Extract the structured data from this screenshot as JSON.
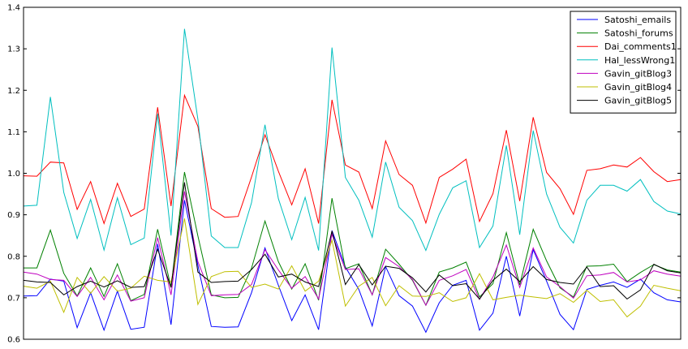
{
  "chart_data": {
    "type": "line",
    "title": "",
    "xlabel": "",
    "ylabel": "",
    "ylim": [
      0.6,
      1.4
    ],
    "xlim": [
      0,
      49
    ],
    "y_ticks": [
      "0.6",
      "0.7",
      "0.8",
      "0.9",
      "1.0",
      "1.1",
      "1.2",
      "1.3",
      "1.4"
    ],
    "grid": false,
    "legend_position": "top-right",
    "x": [
      0,
      1,
      2,
      3,
      4,
      5,
      6,
      7,
      8,
      9,
      10,
      11,
      12,
      13,
      14,
      15,
      16,
      17,
      18,
      19,
      20,
      21,
      22,
      23,
      24,
      25,
      26,
      27,
      28,
      29,
      30,
      31,
      32,
      33,
      34,
      35,
      36,
      37,
      38,
      39,
      40,
      41,
      42,
      43,
      44,
      45,
      46,
      47,
      48,
      49
    ],
    "series": [
      {
        "name": "Satoshi_emails",
        "color": "#0000ff",
        "values": [
          0.704,
          0.705,
          0.745,
          0.74,
          0.628,
          0.712,
          0.622,
          0.716,
          0.624,
          0.629,
          0.83,
          0.635,
          0.935,
          0.778,
          0.631,
          0.629,
          0.63,
          0.712,
          0.82,
          0.73,
          0.645,
          0.707,
          0.623,
          0.862,
          0.774,
          0.72,
          0.632,
          0.775,
          0.705,
          0.68,
          0.617,
          0.688,
          0.73,
          0.742,
          0.622,
          0.663,
          0.8,
          0.656,
          0.816,
          0.74,
          0.66,
          0.623,
          0.72,
          0.73,
          0.738,
          0.725,
          0.745,
          0.712,
          0.695,
          0.69
        ]
      },
      {
        "name": "Satoshi_forums",
        "color": "#008000",
        "values": [
          0.772,
          0.772,
          0.863,
          0.759,
          0.704,
          0.772,
          0.703,
          0.782,
          0.693,
          0.708,
          0.865,
          0.725,
          1.003,
          0.849,
          0.707,
          0.7,
          0.701,
          0.771,
          0.885,
          0.787,
          0.721,
          0.782,
          0.694,
          0.94,
          0.77,
          0.782,
          0.707,
          0.817,
          0.781,
          0.742,
          0.682,
          0.762,
          0.772,
          0.786,
          0.702,
          0.734,
          0.857,
          0.731,
          0.865,
          0.789,
          0.724,
          0.702,
          0.776,
          0.777,
          0.781,
          0.739,
          0.761,
          0.78,
          0.767,
          0.762
        ]
      },
      {
        "name": "Dai_comments1",
        "color": "#ff0000",
        "values": [
          0.994,
          0.993,
          1.027,
          1.025,
          0.913,
          0.98,
          0.879,
          0.976,
          0.896,
          0.914,
          1.159,
          0.921,
          1.188,
          1.113,
          0.915,
          0.894,
          0.896,
          0.991,
          1.093,
          1.005,
          0.924,
          1.011,
          0.879,
          1.177,
          1.02,
          1.003,
          0.915,
          1.078,
          0.997,
          0.971,
          0.88,
          0.99,
          1.01,
          1.034,
          0.884,
          0.951,
          1.104,
          0.933,
          1.135,
          1.002,
          0.963,
          0.901,
          1.007,
          1.011,
          1.02,
          1.015,
          1.038,
          1.004,
          0.98,
          0.985
        ]
      },
      {
        "name": "Hal_lessWrong1",
        "color": "#00bfbf",
        "values": [
          0.921,
          0.923,
          1.184,
          0.954,
          0.843,
          0.937,
          0.815,
          0.941,
          0.828,
          0.844,
          1.144,
          0.85,
          1.348,
          1.13,
          0.849,
          0.821,
          0.821,
          0.929,
          1.117,
          0.939,
          0.84,
          0.942,
          0.814,
          1.303,
          0.99,
          0.935,
          0.846,
          1.027,
          0.918,
          0.886,
          0.814,
          0.901,
          0.965,
          0.982,
          0.821,
          0.873,
          1.067,
          0.852,
          1.103,
          0.95,
          0.87,
          0.832,
          0.935,
          0.971,
          0.971,
          0.957,
          0.985,
          0.932,
          0.909,
          0.902
        ]
      },
      {
        "name": "Gavin_gitBlog3",
        "color": "#bf00bf",
        "values": [
          0.762,
          0.757,
          0.744,
          0.742,
          0.703,
          0.749,
          0.695,
          0.755,
          0.692,
          0.7,
          0.845,
          0.707,
          0.956,
          0.787,
          0.705,
          0.707,
          0.708,
          0.732,
          0.816,
          0.767,
          0.723,
          0.751,
          0.697,
          0.853,
          0.768,
          0.77,
          0.707,
          0.797,
          0.775,
          0.744,
          0.682,
          0.742,
          0.753,
          0.768,
          0.696,
          0.75,
          0.827,
          0.725,
          0.82,
          0.75,
          0.727,
          0.699,
          0.753,
          0.755,
          0.761,
          0.738,
          0.743,
          0.765,
          0.757,
          0.752
        ]
      },
      {
        "name": "Gavin_gitBlog4",
        "color": "#bfbf00",
        "values": [
          0.728,
          0.723,
          0.74,
          0.665,
          0.749,
          0.711,
          0.751,
          0.716,
          0.723,
          0.752,
          0.742,
          0.738,
          0.891,
          0.684,
          0.751,
          0.763,
          0.764,
          0.725,
          0.733,
          0.721,
          0.777,
          0.716,
          0.74,
          0.839,
          0.68,
          0.728,
          0.749,
          0.681,
          0.729,
          0.704,
          0.703,
          0.712,
          0.691,
          0.7,
          0.758,
          0.695,
          0.701,
          0.706,
          0.702,
          0.698,
          0.71,
          0.689,
          0.718,
          0.691,
          0.695,
          0.654,
          0.68,
          0.73,
          0.723,
          0.717
        ]
      },
      {
        "name": "Gavin_gitBlog5",
        "color": "#000000",
        "values": [
          0.742,
          0.738,
          0.737,
          0.707,
          0.727,
          0.74,
          0.726,
          0.741,
          0.725,
          0.727,
          0.817,
          0.725,
          0.978,
          0.762,
          0.737,
          0.739,
          0.74,
          0.768,
          0.805,
          0.75,
          0.757,
          0.738,
          0.727,
          0.861,
          0.732,
          0.78,
          0.731,
          0.776,
          0.771,
          0.748,
          0.714,
          0.755,
          0.729,
          0.734,
          0.697,
          0.742,
          0.769,
          0.739,
          0.775,
          0.744,
          0.737,
          0.733,
          0.774,
          0.727,
          0.729,
          0.697,
          0.719,
          0.781,
          0.765,
          0.76
        ]
      }
    ]
  }
}
